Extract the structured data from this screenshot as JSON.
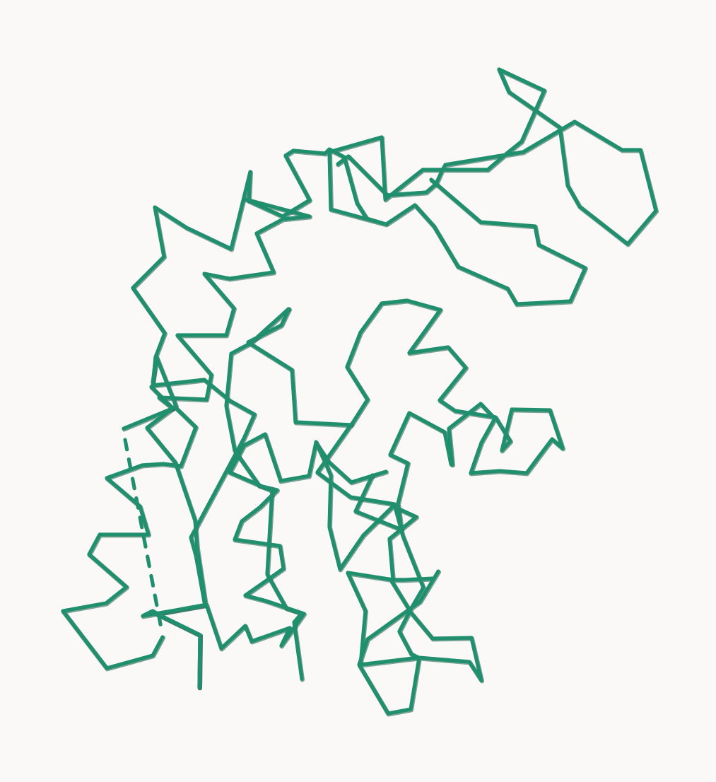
{
  "viewer": {
    "background_color": "#faf9f7",
    "trace_color": "#1f8f6e",
    "trace_shadow_color": "#0f5a42",
    "representation": "backbone-trace"
  }
}
